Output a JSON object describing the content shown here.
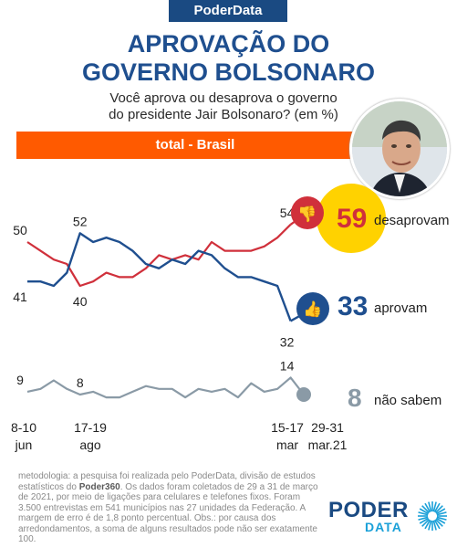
{
  "brand": "PoderData",
  "title_line1": "APROVAÇÃO DO",
  "title_line2": "GOVERNO BOLSONARO",
  "question_line1": "Você aprova ou desaprova o governo",
  "question_line2": "do presidente Jair Bolsonaro?  (em %)",
  "banner": "total - Brasil",
  "methodology": {
    "part1": "metodologia: a pesquisa foi realizada pelo PoderData, divisão de estudos estatísticos do ",
    "bold": "Poder360",
    "part2": ". Os dados foram coletados de 29 a 31 de março de 2021, por meio de ligações para celulares e telefones fixos. Foram 3.500 entrevistas em 541 municípios nas 27 unidades da Federação. A margem de erro é de 1,8 ponto percentual. Obs.: por causa dos arredondamentos, a soma de alguns resultados pode não ser exatamente 100."
  },
  "logo": {
    "poder": "PODER",
    "data": "DATA"
  },
  "colors": {
    "desaprovam": "#d0303b",
    "aprovam": "#1f4f8f",
    "nao_sabem": "#8a9aa6",
    "badge": "#ffd200",
    "banner": "#ff5a00"
  },
  "chart_data": {
    "type": "line",
    "x_labels": [
      {
        "line1": "8-10",
        "line2": "jun",
        "index": 0
      },
      {
        "line1": "17-19",
        "line2": "ago",
        "index": 4
      },
      {
        "line1": "15-17",
        "line2": "mar",
        "index": 20
      },
      {
        "line1": "29-31",
        "line2": "mar.21",
        "index": 21
      }
    ],
    "ylim": [
      0,
      70
    ],
    "series": [
      {
        "name": "desaprovam",
        "final_label": "59",
        "values": [
          50,
          48,
          46,
          45,
          40,
          41,
          43,
          42,
          42,
          44,
          47,
          46,
          47,
          46,
          50,
          48,
          48,
          48,
          49,
          51,
          54,
          59
        ],
        "labels": [
          {
            "index": 0,
            "text": "50"
          },
          {
            "index": 4,
            "text": "40"
          },
          {
            "index": 20,
            "text": "54"
          }
        ]
      },
      {
        "name": "aprovam",
        "final_label": "33",
        "values": [
          41,
          41,
          40,
          43,
          52,
          50,
          51,
          50,
          48,
          45,
          44,
          46,
          45,
          48,
          47,
          44,
          42,
          42,
          41,
          40,
          32,
          33
        ],
        "labels": [
          {
            "index": 0,
            "text": "41"
          },
          {
            "index": 4,
            "text": "52"
          },
          {
            "index": 20,
            "text": "32"
          }
        ]
      },
      {
        "name": "não sabem",
        "final_label": "8",
        "values": [
          9,
          10,
          13,
          10,
          8,
          9,
          7,
          7,
          9,
          11,
          10,
          10,
          7,
          10,
          9,
          10,
          7,
          12,
          9,
          10,
          14,
          8
        ],
        "labels": [
          {
            "index": 0,
            "text": "9"
          },
          {
            "index": 4,
            "text": "8"
          },
          {
            "index": 20,
            "text": "14"
          }
        ]
      }
    ]
  }
}
